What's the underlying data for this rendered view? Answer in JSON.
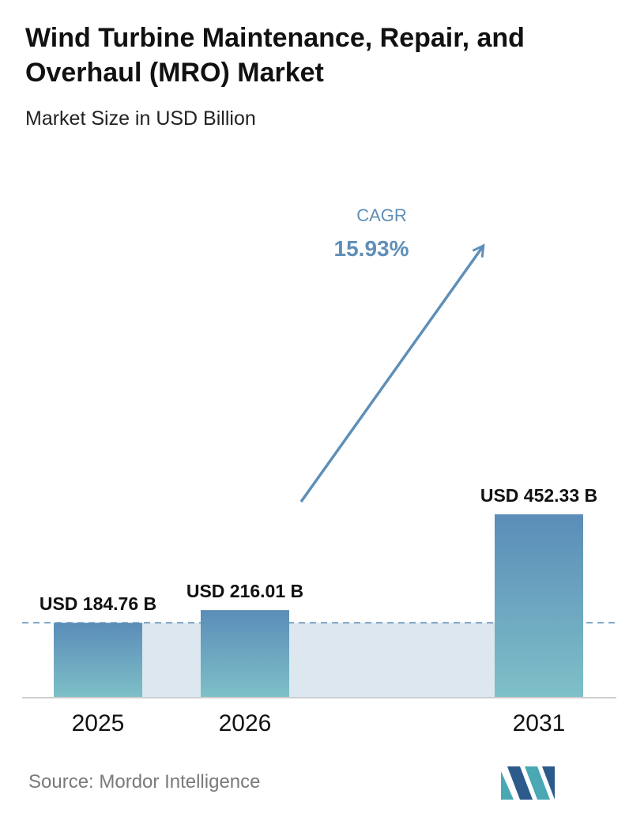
{
  "title": "Wind Turbine Maintenance, Repair, and Overhaul (MRO) Market",
  "subtitle": "Market Size in USD Billion",
  "source": "Source:  Mordor Intelligence",
  "colors": {
    "bar_top": "#5b8db8",
    "bar_bottom": "#7ec0c8",
    "band": "#dde7ef",
    "cagr": "#5f8fb7",
    "arrow": "#5f8fb7",
    "dashed_line": "#5f8fb7",
    "logo_teal": "#4aa8b4",
    "logo_navy": "#2c5a8a"
  },
  "chart_data": {
    "type": "bar",
    "categories": [
      "2025",
      "2026",
      "2031"
    ],
    "values": [
      184.76,
      216.01,
      452.33
    ],
    "data_labels": [
      "USD 184.76 B",
      "USD 216.01 B",
      "USD 452.33 B"
    ],
    "ylabel": "Market Size in USD Billion",
    "ylim": [
      0,
      500
    ],
    "grid": false,
    "baseline_reference": 184.76,
    "annotation": {
      "label": "CAGR",
      "value": "15.93%"
    }
  }
}
